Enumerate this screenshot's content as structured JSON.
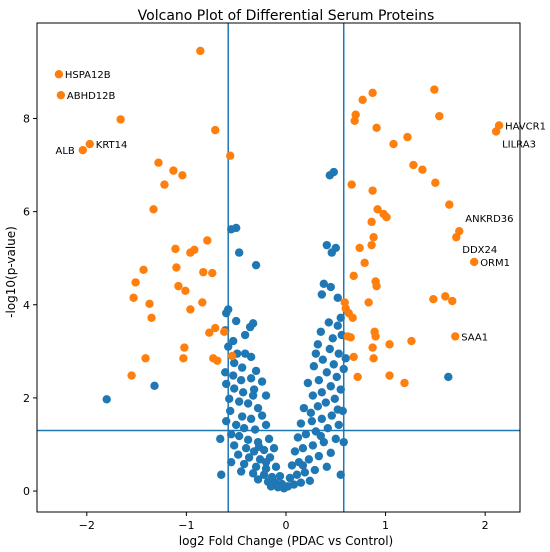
{
  "chart_data": {
    "type": "scatter",
    "title": "Volcano Plot of Differential Serum Proteins",
    "xlabel": "log2 Fold Change (PDAC vs Control)",
    "ylabel": "-log10(p-value)",
    "xlim": [
      -2.5,
      2.35
    ],
    "ylim": [
      -0.45,
      10.05
    ],
    "x_ticks": [
      -2,
      -1,
      0,
      1,
      2
    ],
    "y_ticks": [
      0,
      2,
      4,
      6,
      8
    ],
    "grid": false,
    "thresholds": {
      "vertical": [
        -0.58,
        0.58
      ],
      "horizontal": 1.3
    },
    "colors": {
      "significant": "#ff7f0e",
      "not_significant": "#1f77b4",
      "threshold_line": "#1f77b4"
    },
    "series": [
      {
        "key": "significant",
        "points": [
          [
            -2.28,
            8.95
          ],
          [
            -2.26,
            8.5
          ],
          [
            -2.04,
            7.32
          ],
          [
            -1.97,
            7.45
          ],
          [
            -1.66,
            7.98
          ],
          [
            -0.86,
            9.45
          ],
          [
            -0.71,
            7.75
          ],
          [
            -0.56,
            7.2
          ],
          [
            -1.28,
            7.05
          ],
          [
            -1.13,
            6.88
          ],
          [
            -1.04,
            6.78
          ],
          [
            -1.22,
            6.58
          ],
          [
            -1.33,
            6.05
          ],
          [
            -0.79,
            5.38
          ],
          [
            -0.92,
            5.18
          ],
          [
            -0.96,
            5.12
          ],
          [
            -0.83,
            4.7
          ],
          [
            -0.74,
            4.68
          ],
          [
            -1.11,
            5.2
          ],
          [
            -1.1,
            4.8
          ],
          [
            -1.08,
            4.4
          ],
          [
            -1.01,
            4.3
          ],
          [
            -1.51,
            4.48
          ],
          [
            -1.43,
            4.75
          ],
          [
            -1.53,
            4.15
          ],
          [
            -1.37,
            4.02
          ],
          [
            -0.84,
            4.05
          ],
          [
            -0.96,
            3.9
          ],
          [
            -0.71,
            3.5
          ],
          [
            -0.62,
            3.42
          ],
          [
            -1.35,
            3.72
          ],
          [
            -0.77,
            3.4
          ],
          [
            -1.02,
            3.08
          ],
          [
            -1.41,
            2.85
          ],
          [
            -1.55,
            2.48
          ],
          [
            -1.03,
            2.85
          ],
          [
            -0.73,
            2.85
          ],
          [
            -0.69,
            2.8
          ],
          [
            -0.54,
            2.9
          ],
          [
            0.77,
            8.4
          ],
          [
            0.87,
            8.55
          ],
          [
            0.7,
            8.08
          ],
          [
            0.69,
            7.95
          ],
          [
            0.91,
            7.8
          ],
          [
            1.08,
            7.45
          ],
          [
            1.22,
            7.6
          ],
          [
            1.49,
            8.62
          ],
          [
            1.54,
            8.05
          ],
          [
            2.11,
            7.72
          ],
          [
            2.14,
            7.85
          ],
          [
            1.28,
            7.0
          ],
          [
            1.37,
            6.9
          ],
          [
            1.5,
            6.62
          ],
          [
            1.64,
            6.15
          ],
          [
            0.66,
            6.58
          ],
          [
            0.87,
            6.45
          ],
          [
            0.92,
            6.05
          ],
          [
            1.01,
            5.88
          ],
          [
            0.98,
            5.95
          ],
          [
            0.86,
            5.78
          ],
          [
            1.74,
            5.58
          ],
          [
            1.71,
            5.45
          ],
          [
            1.89,
            4.92
          ],
          [
            0.88,
            5.45
          ],
          [
            0.86,
            5.28
          ],
          [
            0.74,
            5.22
          ],
          [
            0.79,
            4.9
          ],
          [
            0.68,
            4.62
          ],
          [
            0.9,
            4.5
          ],
          [
            0.91,
            4.4
          ],
          [
            0.83,
            4.05
          ],
          [
            0.59,
            4.05
          ],
          [
            0.6,
            3.92
          ],
          [
            0.63,
            3.82
          ],
          [
            0.67,
            3.72
          ],
          [
            1.48,
            4.12
          ],
          [
            1.6,
            4.18
          ],
          [
            1.67,
            4.08
          ],
          [
            0.62,
            3.32
          ],
          [
            0.65,
            3.3
          ],
          [
            0.89,
            3.42
          ],
          [
            0.9,
            3.32
          ],
          [
            1.04,
            3.15
          ],
          [
            1.26,
            3.22
          ],
          [
            1.7,
            3.32
          ],
          [
            0.68,
            2.88
          ],
          [
            0.87,
            3.08
          ],
          [
            0.88,
            2.85
          ],
          [
            0.72,
            2.45
          ],
          [
            1.04,
            2.48
          ],
          [
            1.19,
            2.32
          ]
        ]
      },
      {
        "key": "not_significant",
        "points": [
          [
            -0.55,
            5.62
          ],
          [
            -0.5,
            5.65
          ],
          [
            -0.47,
            5.12
          ],
          [
            -0.3,
            4.85
          ],
          [
            -0.58,
            3.9
          ],
          [
            -0.6,
            3.82
          ],
          [
            -0.5,
            3.65
          ],
          [
            -0.41,
            3.35
          ],
          [
            -0.33,
            3.6
          ],
          [
            -0.61,
            3.45
          ],
          [
            -0.36,
            3.52
          ],
          [
            -0.53,
            3.22
          ],
          [
            -0.58,
            3.1
          ],
          [
            -0.49,
            2.95
          ],
          [
            -0.35,
            2.88
          ],
          [
            -0.52,
            2.75
          ],
          [
            -0.44,
            2.65
          ],
          [
            -0.3,
            2.58
          ],
          [
            -0.61,
            2.55
          ],
          [
            -0.53,
            2.48
          ],
          [
            -0.45,
            2.38
          ],
          [
            -0.35,
            2.42
          ],
          [
            -0.24,
            2.35
          ],
          [
            -0.6,
            2.3
          ],
          [
            -0.52,
            2.2
          ],
          [
            -0.43,
            2.12
          ],
          [
            -0.32,
            2.18
          ],
          [
            -0.2,
            2.05
          ],
          [
            -0.57,
            1.98
          ],
          [
            -0.47,
            1.92
          ],
          [
            -0.38,
            1.88
          ],
          [
            -0.28,
            1.78
          ],
          [
            -0.56,
            1.72
          ],
          [
            -0.44,
            1.6
          ],
          [
            -0.35,
            1.55
          ],
          [
            -0.24,
            1.62
          ],
          [
            -0.6,
            1.5
          ],
          [
            -0.5,
            1.42
          ],
          [
            -0.42,
            1.35
          ],
          [
            -0.31,
            1.32
          ],
          [
            -0.2,
            1.42
          ],
          [
            -0.55,
            1.22
          ],
          [
            -0.47,
            1.18
          ],
          [
            -0.38,
            1.1
          ],
          [
            -0.28,
            1.05
          ],
          [
            -0.17,
            1.12
          ],
          [
            -0.52,
            0.98
          ],
          [
            -0.4,
            0.92
          ],
          [
            -0.32,
            0.85
          ],
          [
            -0.22,
            0.88
          ],
          [
            -0.12,
            0.92
          ],
          [
            -0.48,
            0.78
          ],
          [
            -0.37,
            0.72
          ],
          [
            -0.26,
            0.68
          ],
          [
            -0.16,
            0.72
          ],
          [
            -0.55,
            0.62
          ],
          [
            -0.42,
            0.58
          ],
          [
            -0.3,
            0.52
          ],
          [
            -0.2,
            0.48
          ],
          [
            -0.1,
            0.52
          ],
          [
            -0.45,
            0.42
          ],
          [
            -0.33,
            0.38
          ],
          [
            -0.22,
            0.35
          ],
          [
            -0.14,
            0.3
          ],
          [
            -0.06,
            0.32
          ],
          [
            -0.28,
            0.25
          ],
          [
            -0.18,
            0.2
          ],
          [
            -0.1,
            0.18
          ],
          [
            -0.04,
            0.15
          ],
          [
            -0.15,
            0.1
          ],
          [
            -0.08,
            0.08
          ],
          [
            -0.02,
            0.06
          ],
          [
            -0.65,
            0.35
          ],
          [
            -0.66,
            1.12
          ],
          [
            -0.33,
            2.05
          ],
          [
            -0.41,
            2.95
          ],
          [
            -0.27,
            0.95
          ],
          [
            -1.32,
            2.26
          ],
          [
            -1.8,
            1.97
          ],
          [
            -0.2,
            0.62
          ],
          [
            0.44,
            6.78
          ],
          [
            0.48,
            6.85
          ],
          [
            0.41,
            5.28
          ],
          [
            0.46,
            5.12
          ],
          [
            0.5,
            5.22
          ],
          [
            0.38,
            4.45
          ],
          [
            0.45,
            4.38
          ],
          [
            0.36,
            4.22
          ],
          [
            0.52,
            4.15
          ],
          [
            0.55,
            3.72
          ],
          [
            0.43,
            3.62
          ],
          [
            0.52,
            3.55
          ],
          [
            0.35,
            3.42
          ],
          [
            0.47,
            3.28
          ],
          [
            0.56,
            3.35
          ],
          [
            0.32,
            3.15
          ],
          [
            0.44,
            3.05
          ],
          [
            0.53,
            2.95
          ],
          [
            0.37,
            2.82
          ],
          [
            0.48,
            2.72
          ],
          [
            0.28,
            2.68
          ],
          [
            0.58,
            2.62
          ],
          [
            0.41,
            2.55
          ],
          [
            0.51,
            2.45
          ],
          [
            0.33,
            2.38
          ],
          [
            0.22,
            2.32
          ],
          [
            0.45,
            2.25
          ],
          [
            0.55,
            2.18
          ],
          [
            0.36,
            2.12
          ],
          [
            0.27,
            2.05
          ],
          [
            0.49,
            1.98
          ],
          [
            0.4,
            1.9
          ],
          [
            0.32,
            1.82
          ],
          [
            0.18,
            1.78
          ],
          [
            0.57,
            1.72
          ],
          [
            0.46,
            1.62
          ],
          [
            0.36,
            1.55
          ],
          [
            0.26,
            1.5
          ],
          [
            0.15,
            1.45
          ],
          [
            0.53,
            1.42
          ],
          [
            0.42,
            1.35
          ],
          [
            0.3,
            1.28
          ],
          [
            0.2,
            1.22
          ],
          [
            0.12,
            1.15
          ],
          [
            0.5,
            1.12
          ],
          [
            0.38,
            1.05
          ],
          [
            0.27,
            0.98
          ],
          [
            0.17,
            0.92
          ],
          [
            0.09,
            0.85
          ],
          [
            0.45,
            0.82
          ],
          [
            0.33,
            0.75
          ],
          [
            0.23,
            0.68
          ],
          [
            0.13,
            0.62
          ],
          [
            0.06,
            0.55
          ],
          [
            0.41,
            0.52
          ],
          [
            0.29,
            0.45
          ],
          [
            0.19,
            0.4
          ],
          [
            0.11,
            0.35
          ],
          [
            0.04,
            0.28
          ],
          [
            0.24,
            0.22
          ],
          [
            0.15,
            0.18
          ],
          [
            0.08,
            0.14
          ],
          [
            0.02,
            0.1
          ],
          [
            0.55,
            0.35
          ],
          [
            0.58,
            1.05
          ],
          [
            0.52,
            1.75
          ],
          [
            0.6,
            2.85
          ],
          [
            0.3,
            2.95
          ],
          [
            1.63,
            2.45
          ],
          [
            0.17,
            0.55
          ],
          [
            0.35,
            1.18
          ],
          [
            0.25,
            1.68
          ]
        ]
      }
    ],
    "annotations": [
      {
        "text": "HSPA12B",
        "x": -2.28,
        "y": 8.95,
        "anchor": "start"
      },
      {
        "text": "ABHD12B",
        "x": -2.26,
        "y": 8.5,
        "anchor": "start"
      },
      {
        "text": "KRT14",
        "x": -1.97,
        "y": 7.45,
        "anchor": "start"
      },
      {
        "text": "ALB",
        "x": -2.04,
        "y": 7.32,
        "anchor": "end"
      },
      {
        "text": "HAVCR1",
        "x": 2.14,
        "y": 7.85,
        "anchor": "start"
      },
      {
        "text": "LILRA3",
        "x": 2.11,
        "y": 7.72,
        "anchor": "start",
        "below": true
      },
      {
        "text": "ANKRD36",
        "x": 1.74,
        "y": 5.58,
        "anchor": "start",
        "above": true
      },
      {
        "text": "DDX24",
        "x": 1.71,
        "y": 5.45,
        "anchor": "start",
        "below": true
      },
      {
        "text": "ORM1",
        "x": 1.89,
        "y": 4.92,
        "anchor": "start"
      },
      {
        "text": "SAA1",
        "x": 1.7,
        "y": 3.32,
        "anchor": "start"
      }
    ]
  }
}
